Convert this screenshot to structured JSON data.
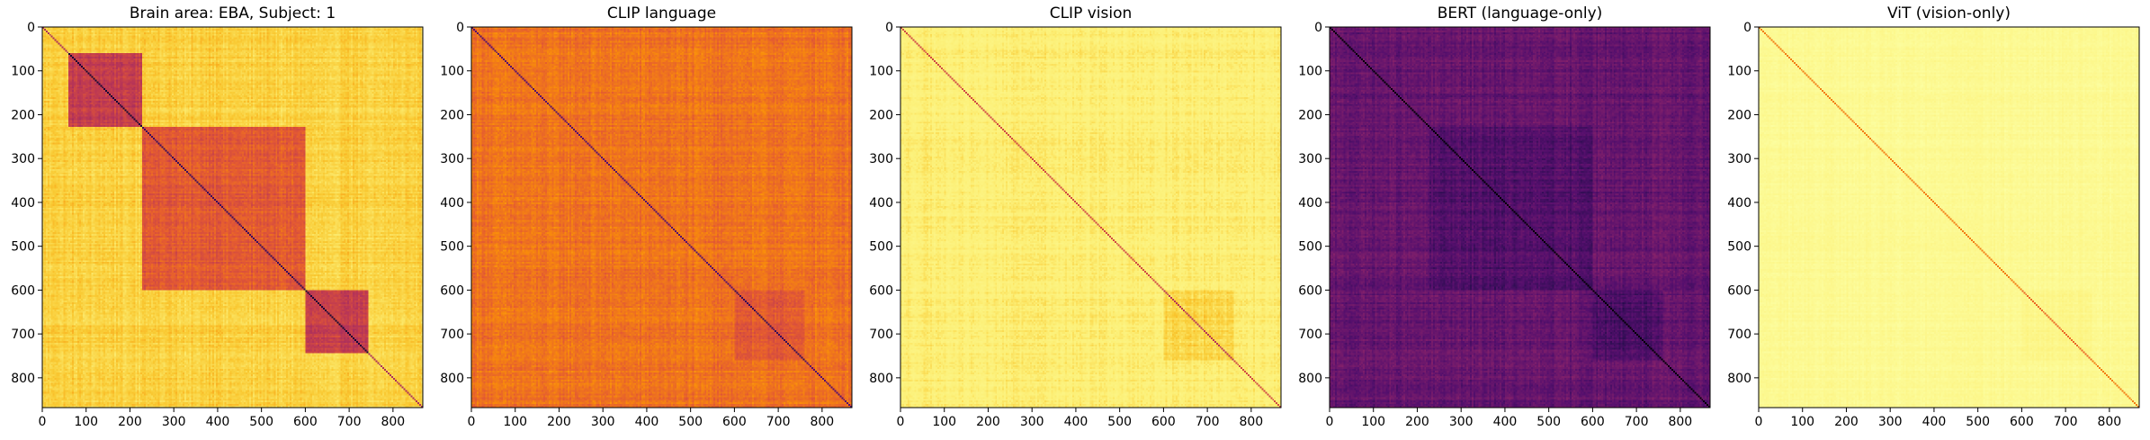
{
  "chart_data": [
    {
      "type": "heatmap",
      "title": "Brain area: EBA, Subject: 1",
      "xticks": [
        0,
        100,
        200,
        300,
        400,
        500,
        600,
        700,
        800
      ],
      "yticks": [
        0,
        100,
        200,
        300,
        400,
        500,
        600,
        700,
        800
      ],
      "xlim": [
        0,
        868
      ],
      "ylim": [
        868,
        0
      ],
      "colormap": "inferno",
      "diagonal": "dark",
      "blocks": [
        {
          "range": [
            60,
            228
          ],
          "level": 0.42
        },
        {
          "range": [
            600,
            745
          ],
          "level": 0.42
        },
        {
          "range": [
            228,
            600
          ],
          "level": 0.5
        },
        {
          "range": [
            560,
            600
          ],
          "level": 0.48
        }
      ],
      "background_level": 0.72
    },
    {
      "type": "heatmap",
      "title": "CLIP language",
      "xticks": [
        0,
        100,
        200,
        300,
        400,
        500,
        600,
        700,
        800
      ],
      "yticks": [
        0,
        100,
        200,
        300,
        400,
        500,
        600,
        700,
        800
      ],
      "xlim": [
        0,
        868
      ],
      "ylim": [
        868,
        0
      ],
      "colormap": "inferno",
      "diagonal": "dark",
      "blocks": [
        {
          "range": [
            600,
            760
          ],
          "level": 0.49
        }
      ],
      "background_level": 0.55
    },
    {
      "type": "heatmap",
      "title": "CLIP vision",
      "xticks": [
        0,
        100,
        200,
        300,
        400,
        500,
        600,
        700,
        800
      ],
      "yticks": [
        0,
        100,
        200,
        300,
        400,
        500,
        600,
        700,
        800
      ],
      "xlim": [
        0,
        868
      ],
      "ylim": [
        868,
        0
      ],
      "colormap": "inferno",
      "diagonal": "dark",
      "blocks": [
        {
          "range": [
            600,
            760
          ],
          "level": 0.74
        }
      ],
      "background_level": 0.8
    },
    {
      "type": "heatmap",
      "title": "BERT (language-only)",
      "xticks": [
        0,
        100,
        200,
        300,
        400,
        500,
        600,
        700,
        800
      ],
      "yticks": [
        0,
        100,
        200,
        300,
        400,
        500,
        600,
        700,
        800
      ],
      "xlim": [
        0,
        868
      ],
      "ylim": [
        868,
        0
      ],
      "colormap": "inferno",
      "diagonal": "dark",
      "blocks": [
        {
          "range": [
            228,
            600
          ],
          "level": 0.19
        },
        {
          "range": [
            600,
            760
          ],
          "level": 0.18
        }
      ],
      "background_level": 0.23
    },
    {
      "type": "heatmap",
      "title": "ViT (vision-only)",
      "xticks": [
        0,
        100,
        200,
        300,
        400,
        500,
        600,
        700,
        800
      ],
      "yticks": [
        0,
        100,
        200,
        300,
        400,
        500,
        600,
        700,
        800
      ],
      "xlim": [
        0,
        868
      ],
      "ylim": [
        868,
        0
      ],
      "colormap": "inferno",
      "diagonal": "dark",
      "blocks": [
        {
          "range": [
            600,
            760
          ],
          "level": 0.88
        }
      ],
      "background_level": 0.92
    }
  ]
}
